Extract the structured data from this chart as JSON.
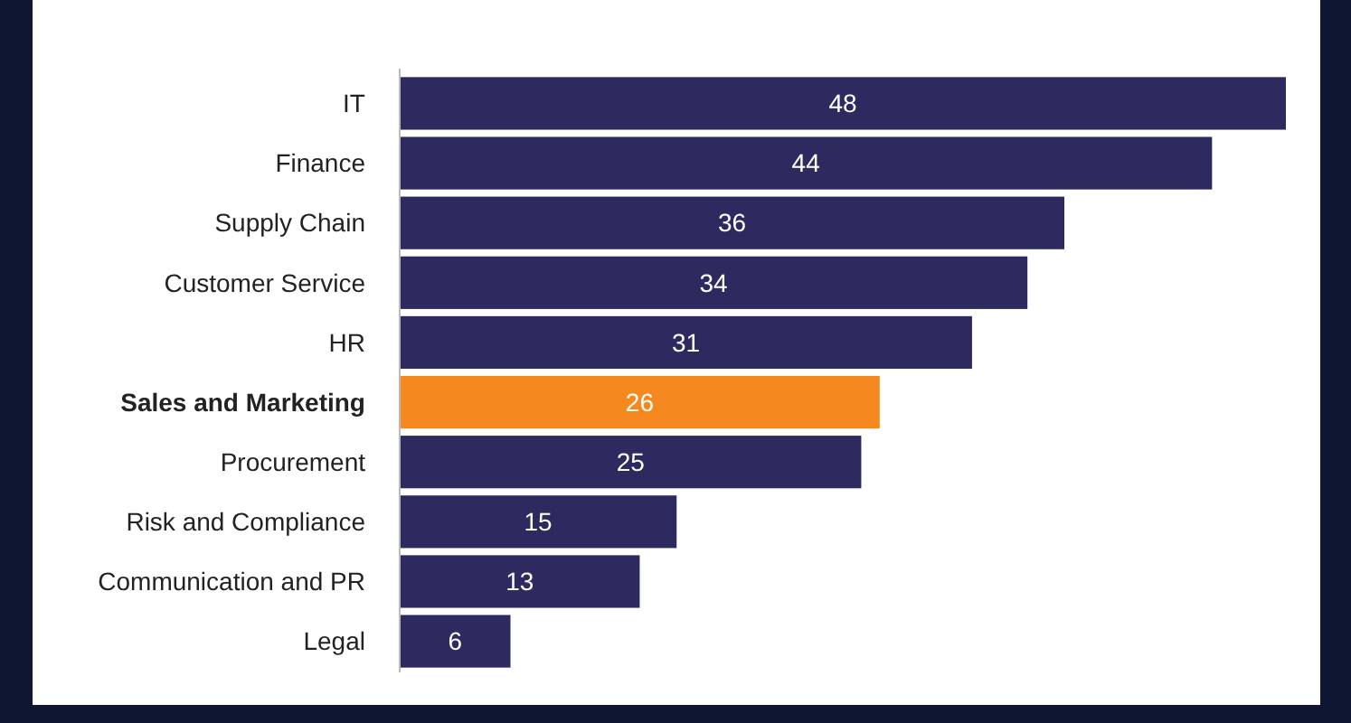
{
  "chart_data": {
    "type": "bar",
    "orientation": "horizontal",
    "categories": [
      "IT",
      "Finance",
      "Supply Chain",
      "Customer Service",
      "HR",
      "Sales and Marketing",
      "Procurement",
      "Risk and Compliance",
      "Communication and PR",
      "Legal"
    ],
    "values": [
      48,
      44,
      36,
      34,
      31,
      26,
      25,
      15,
      13,
      6
    ],
    "colors": [
      "#2c2a5f",
      "#2c2a5f",
      "#2c2a5f",
      "#2c2a5f",
      "#2c2a5f",
      "#f5891f",
      "#2c2a5f",
      "#2c2a5f",
      "#2c2a5f",
      "#2c2a5f"
    ],
    "data_labels": true
  }
}
